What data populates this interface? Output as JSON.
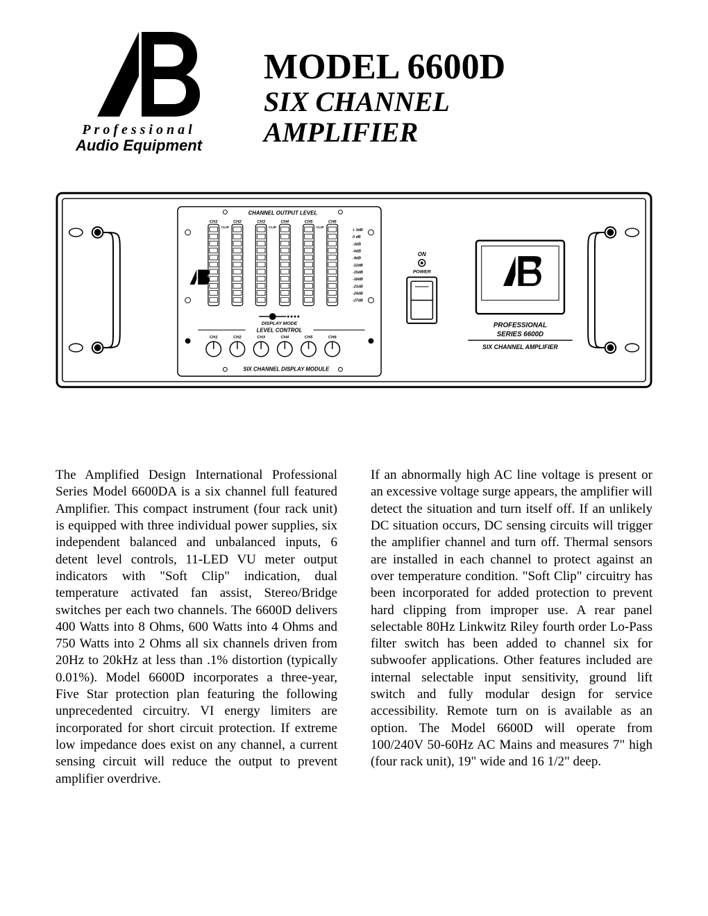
{
  "colors": {
    "text": "#000000",
    "background": "#ffffff",
    "line": "#000000"
  },
  "logo": {
    "line1": "Professional",
    "line2": "Audio Equipment"
  },
  "title": {
    "main": "MODEL 6600D",
    "sub1": "SIX CHANNEL",
    "sub2": "AMPLIFIER"
  },
  "diagram": {
    "top_label": "CHANNEL OUTPUT LEVEL",
    "channel_headers": [
      "CH1",
      "CH2",
      "CH3",
      "CH4",
      "CH5",
      "CH6"
    ],
    "clip_label": "CLIP",
    "level_values": [
      "+ 3dB",
      "0 dB",
      "-3dB",
      "-6dB",
      "-9dB",
      "-12dB",
      "-15dB",
      "-18dB",
      "-21dB",
      "-24dB",
      "-27dB"
    ],
    "display_mode": "DISPLAY MODE",
    "level_control": "LEVEL CONTROL",
    "bottom_label": "SIX CHANNEL DISPLAY MODULE",
    "power_on": "ON",
    "power_label": "POWER",
    "panel_line1": "PROFESSIONAL",
    "panel_line2": "SERIES 6600D",
    "panel_line3": "SIX CHANNEL AMPLIFIER"
  },
  "paragraphs": {
    "p1": "The Amplified Design International Professional Series Model 6600DA is a six channel full featured Amplifier. This compact instrument (four rack unit) is equipped with three individual power supplies, six independent balanced and unbalanced inputs, 6 detent level controls, 11-LED VU meter output indicators with \"Soft Clip\" indication, dual temperature activated fan assist, Stereo/Bridge switches per each two channels. The 6600D delivers 400 Watts into 8 Ohms, 600 Watts into 4 Ohms and 750 Watts into 2 Ohms all six channels driven from 20Hz to 20kHz at less than .1% distortion (typically 0.01%). Model 6600D incorporates a three-year, Five Star protection plan featuring the following unprecedented circuitry. VI energy limiters are incorporated for short circuit protection. If extreme low impedance does exist on any channel, a current sensing circuit will reduce the output to prevent amplifier overdrive.",
    "p2": "If an abnormally high AC line voltage is present or an excessive voltage surge appears, the amplifier will detect the situation and turn itself off. If an unlikely DC situation occurs, DC sensing circuits will trigger the amplifier channel and turn off. Thermal sensors are installed in each channel to protect against an over temperature condition. \"Soft Clip\" circuitry has been incorporated for added protection to prevent hard clipping from improper use. A rear panel selectable 80Hz Linkwitz Riley fourth order Lo-Pass filter switch has been added to channel six for subwoofer applications. Other features included are internal selectable input sensitivity, ground lift switch and fully modular design for service accessibility. Remote turn on is available as an option. The Model 6600D will operate from 100/240V 50-60Hz AC Mains and measures 7\" high (four rack unit), 19\" wide and 16 1/2\" deep."
  },
  "typography": {
    "title_fontsize": 52,
    "subtitle_fontsize": 40,
    "body_fontsize": 19,
    "body_lineheight": 1.28
  }
}
